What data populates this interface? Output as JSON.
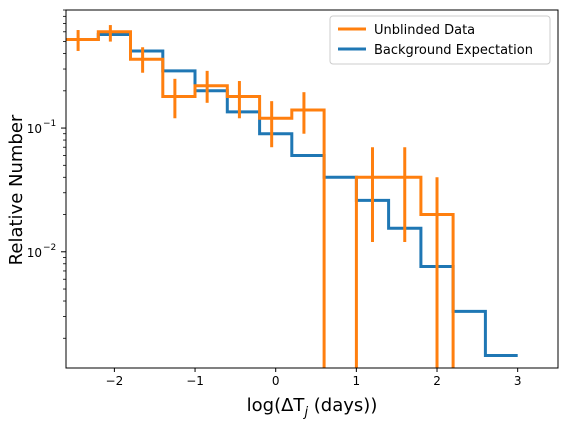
{
  "chart_data": {
    "type": "line",
    "title": "",
    "xlabel": "log(ΔT",
    "xlabel_sub": "j",
    "xlabel_tail": " (days))",
    "ylabel": "Relative Number",
    "xlim": [
      -2.6,
      3.5
    ],
    "ylim": [
      0.00115,
      0.9
    ],
    "yscale": "log",
    "grid": false,
    "legend_position": "top-right",
    "x_ticks": [
      -2,
      -1,
      0,
      1,
      2,
      3
    ],
    "x_tick_labels": [
      "−2",
      "−1",
      "0",
      "1",
      "2",
      "3"
    ],
    "y_ticks": [
      0.01,
      0.1
    ],
    "y_tick_labels_base": [
      "10",
      "10"
    ],
    "y_tick_labels_exp": [
      "−2",
      "−1"
    ],
    "series": [
      {
        "name": "Background Expectation",
        "color": "#1f77b4",
        "style": "step",
        "edges": [
          -2.6,
          -2.2,
          -1.8,
          -1.4,
          -1.0,
          -0.6,
          -0.2,
          0.2,
          0.6,
          1.0,
          1.4,
          1.8,
          2.2,
          2.6,
          3.0
        ],
        "values": [
          0.52,
          0.57,
          0.42,
          0.29,
          0.2,
          0.135,
          0.09,
          0.06,
          0.04,
          0.026,
          0.0155,
          0.0076,
          0.0033,
          0.00145
        ]
      },
      {
        "name": "Unblinded Data",
        "color": "#ff7f0e",
        "style": "step",
        "edges": [
          -2.6,
          -2.2,
          -1.8,
          -1.4,
          -1.0,
          -0.6,
          -0.2,
          0.2,
          0.6,
          1.0,
          1.4,
          1.8,
          2.2
        ],
        "values": [
          0.52,
          0.6,
          0.36,
          0.18,
          0.22,
          0.18,
          0.12,
          0.14,
          0.0005,
          0.04,
          0.04,
          0.02,
          0.0005
        ],
        "error_bars": [
          {
            "x": -2.45,
            "y": 0.52,
            "lo": 0.42,
            "hi": 0.62
          },
          {
            "x": -2.05,
            "y": 0.6,
            "lo": 0.5,
            "hi": 0.68
          },
          {
            "x": -1.65,
            "y": 0.36,
            "lo": 0.28,
            "hi": 0.45
          },
          {
            "x": -1.25,
            "y": 0.18,
            "lo": 0.12,
            "hi": 0.25
          },
          {
            "x": -0.85,
            "y": 0.22,
            "lo": 0.16,
            "hi": 0.29
          },
          {
            "x": -0.45,
            "y": 0.18,
            "lo": 0.12,
            "hi": 0.24
          },
          {
            "x": -0.05,
            "y": 0.12,
            "lo": 0.07,
            "hi": 0.165
          },
          {
            "x": 0.35,
            "y": 0.14,
            "lo": 0.09,
            "hi": 0.195
          },
          {
            "x": 1.2,
            "y": 0.04,
            "lo": 0.012,
            "hi": 0.07
          },
          {
            "x": 1.6,
            "y": 0.04,
            "lo": 0.012,
            "hi": 0.07
          },
          {
            "x": 2.0,
            "y": 0.02,
            "lo": 0.0001,
            "hi": 0.04
          }
        ]
      }
    ],
    "legend": [
      {
        "name": "Unblinded Data",
        "color": "#ff7f0e"
      },
      {
        "name": "Background Expectation",
        "color": "#1f77b4"
      }
    ]
  }
}
